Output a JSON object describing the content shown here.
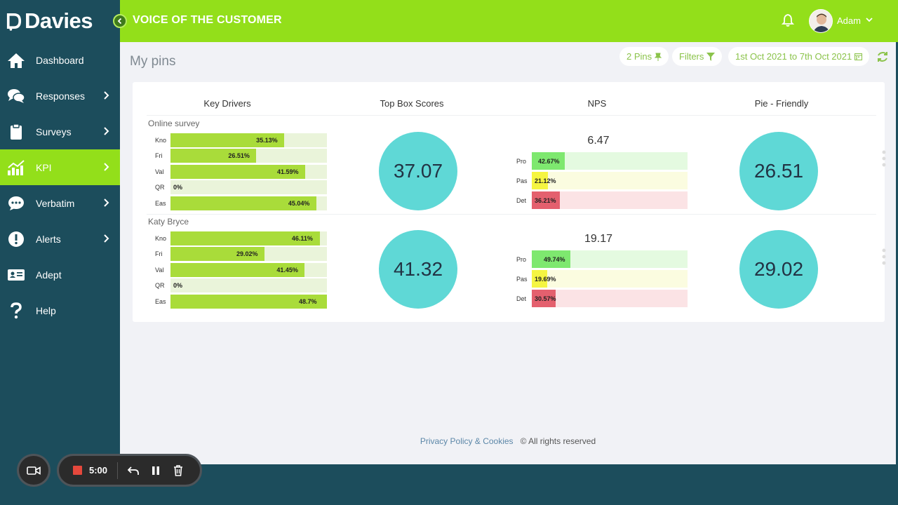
{
  "brand": {
    "name": "Davies"
  },
  "sidebar": {
    "items": [
      {
        "label": "Dashboard",
        "icon": "home-icon",
        "chevron": false,
        "active": false
      },
      {
        "label": "Responses",
        "icon": "chat-icon",
        "chevron": true,
        "active": false
      },
      {
        "label": "Surveys",
        "icon": "clipboard-icon",
        "chevron": true,
        "active": false
      },
      {
        "label": "KPI",
        "icon": "chart-icon",
        "chevron": true,
        "active": true
      },
      {
        "label": "Verbatim",
        "icon": "speech-icon",
        "chevron": true,
        "active": false
      },
      {
        "label": "Alerts",
        "icon": "alert-icon",
        "chevron": true,
        "active": false
      },
      {
        "label": "Adept",
        "icon": "id-card-icon",
        "chevron": false,
        "active": false
      },
      {
        "label": "Help",
        "icon": "help-icon",
        "chevron": false,
        "active": false
      }
    ]
  },
  "header": {
    "title": "VOICE OF THE CUSTOMER",
    "user_name": "Adam"
  },
  "toolbar": {
    "page_title": "My pins",
    "pins_label": "2 Pins",
    "filters_label": "Filters",
    "date_range": "1st Oct 2021 to 7th Oct 2021"
  },
  "columns": {
    "key_drivers": "Key Drivers",
    "top_box": "Top Box Scores",
    "nps": "NPS",
    "pie": "Pie - Friendly"
  },
  "rows": [
    {
      "name": "Online survey",
      "key_drivers": [
        {
          "label": "Kno",
          "value": 35.13,
          "text": "35.13%"
        },
        {
          "label": "Fri",
          "value": 26.51,
          "text": "26.51%"
        },
        {
          "label": "Val",
          "value": 41.59,
          "text": "41.59%"
        },
        {
          "label": "QR",
          "value": 0,
          "text": "0%"
        },
        {
          "label": "Eas",
          "value": 45.04,
          "text": "45.04%"
        }
      ],
      "top_box": "37.07",
      "nps_score": "6.47",
      "nps": [
        {
          "label": "Pro",
          "value": 42.67,
          "text": "42.67%"
        },
        {
          "label": "Pas",
          "value": 21.12,
          "text": "21.12%"
        },
        {
          "label": "Det",
          "value": 36.21,
          "text": "36.21%"
        }
      ],
      "pie": "26.51"
    },
    {
      "name": "Katy Bryce",
      "key_drivers": [
        {
          "label": "Kno",
          "value": 46.11,
          "text": "46.11%"
        },
        {
          "label": "Fri",
          "value": 29.02,
          "text": "29.02%"
        },
        {
          "label": "Val",
          "value": 41.45,
          "text": "41.45%"
        },
        {
          "label": "QR",
          "value": 0,
          "text": "0%"
        },
        {
          "label": "Eas",
          "value": 48.7,
          "text": "48.7%"
        }
      ],
      "top_box": "41.32",
      "nps_score": "19.17",
      "nps": [
        {
          "label": "Pro",
          "value": 49.74,
          "text": "49.74%"
        },
        {
          "label": "Pas",
          "value": 19.69,
          "text": "19.69%"
        },
        {
          "label": "Det",
          "value": 30.57,
          "text": "30.57%"
        }
      ],
      "pie": "29.02"
    }
  ],
  "footer": {
    "privacy_link": "Privacy Policy & Cookies",
    "rights": "© All rights reserved"
  },
  "recorder": {
    "time": "5:00"
  },
  "colors": {
    "accent": "#93df1a",
    "sidebar": "#1c4d5c",
    "circle": "#5fd8d6",
    "nps_pro": "#7ee86f",
    "nps_pro_track": "#e4fae0",
    "nps_pas": "#f5f542",
    "nps_pas_track": "#fbfce0",
    "nps_det": "#e4606e",
    "nps_det_track": "#fbe3e5"
  }
}
